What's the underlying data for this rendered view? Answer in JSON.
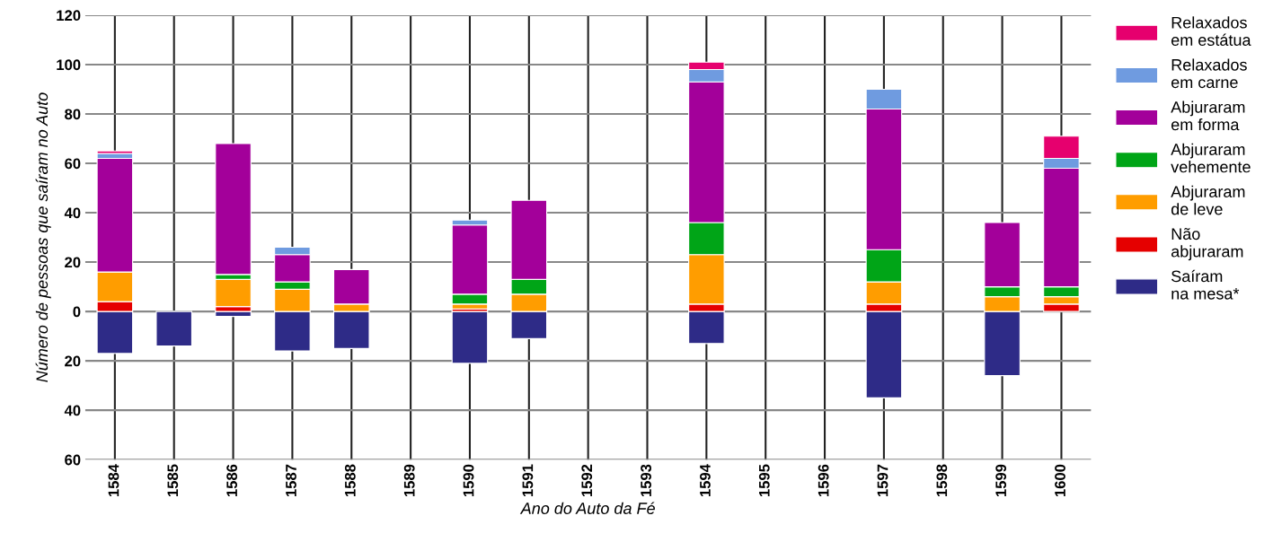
{
  "chart_data": {
    "type": "bar",
    "stacked": true,
    "xlabel": "Ano do Auto da Fé",
    "ylabel": "Número de pessoas que saíram no Auto",
    "categories": [
      "1584",
      "1585",
      "1586",
      "1587",
      "1588",
      "1589",
      "1590",
      "1591",
      "1592",
      "1593",
      "1594",
      "1595",
      "1596",
      "1597",
      "1598",
      "1599",
      "1600"
    ],
    "series": [
      {
        "name": "Saíram na mesa*",
        "color": "#2e2b87",
        "values": [
          -17,
          -14,
          -2,
          -16,
          -15,
          null,
          -21,
          -11,
          null,
          null,
          -13,
          null,
          null,
          -35,
          null,
          -26,
          null
        ]
      },
      {
        "name": "Não abjuraram",
        "color": "#e50000",
        "values": [
          4,
          null,
          2,
          null,
          null,
          null,
          1,
          null,
          null,
          null,
          3,
          null,
          null,
          3,
          null,
          null,
          3
        ]
      },
      {
        "name": "Abjuraram de leve",
        "color": "#ff9d00",
        "values": [
          12,
          null,
          11,
          9,
          3,
          null,
          2,
          7,
          null,
          null,
          20,
          null,
          null,
          9,
          null,
          6,
          3
        ]
      },
      {
        "name": "Abjuraram vehemente",
        "color": "#00a517",
        "values": [
          null,
          null,
          2,
          3,
          null,
          null,
          4,
          6,
          null,
          null,
          13,
          null,
          null,
          13,
          null,
          4,
          4
        ]
      },
      {
        "name": "Abjuraram em forma",
        "color": "#a3009a",
        "values": [
          46,
          null,
          53,
          11,
          14,
          null,
          28,
          32,
          null,
          null,
          57,
          null,
          null,
          57,
          null,
          26,
          48
        ]
      },
      {
        "name": "Relaxados em carne",
        "color": "#6f9be0",
        "values": [
          2,
          null,
          null,
          3,
          null,
          null,
          2,
          null,
          null,
          null,
          5,
          null,
          null,
          8,
          null,
          null,
          4
        ]
      },
      {
        "name": "Relaxados em estátua",
        "color": "#e6006e",
        "values": [
          1,
          null,
          null,
          null,
          null,
          null,
          null,
          null,
          null,
          null,
          3,
          null,
          null,
          null,
          null,
          null,
          9
        ]
      }
    ],
    "ylim": [
      -60,
      120
    ],
    "yticks": [
      {
        "value": -60,
        "label": "60"
      },
      {
        "value": -40,
        "label": "40"
      },
      {
        "value": -20,
        "label": "20"
      },
      0,
      20,
      40,
      60,
      80,
      100,
      120
    ],
    "grid": true,
    "legend": "right"
  }
}
